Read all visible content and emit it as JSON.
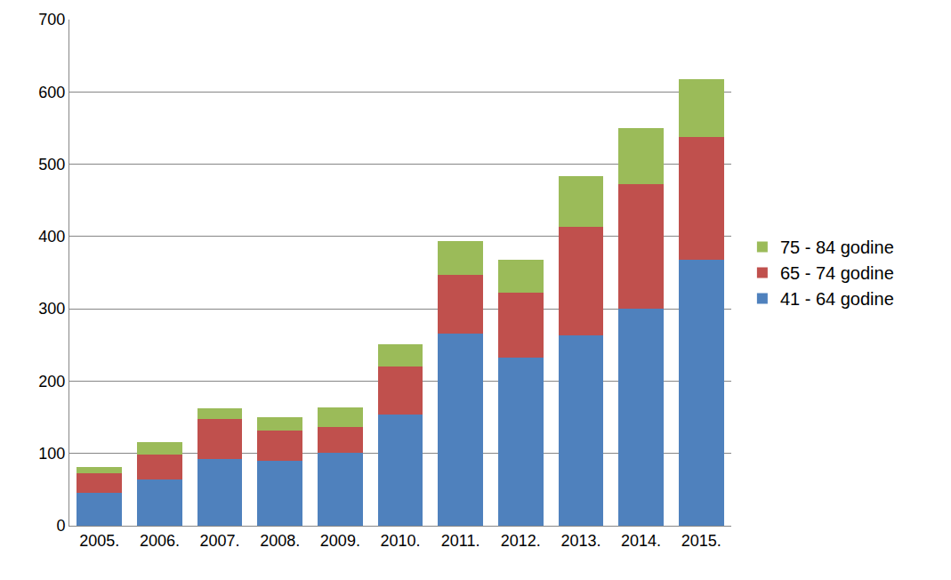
{
  "chart_data": {
    "type": "bar",
    "stacked": true,
    "grid": true,
    "legend": "right",
    "categories": [
      "2005.",
      "2006.",
      "2007.",
      "2008.",
      "2009.",
      "2010.",
      "2011.",
      "2012.",
      "2013.",
      "2014.",
      "2015."
    ],
    "series": [
      {
        "name": "41 - 64 godine",
        "color": "#4f81bd",
        "values": [
          46,
          64,
          92,
          90,
          101,
          154,
          266,
          232,
          263,
          300,
          368
        ]
      },
      {
        "name": "65 - 74 godine",
        "color": "#c0504d",
        "values": [
          27,
          34,
          56,
          42,
          36,
          66,
          81,
          90,
          150,
          172,
          170
        ]
      },
      {
        "name": "75 - 84 godine",
        "color": "#9bbb59",
        "values": [
          8,
          18,
          14,
          18,
          27,
          31,
          47,
          46,
          70,
          78,
          80
        ]
      }
    ],
    "ylim": [
      0,
      700
    ],
    "yticks": [
      0,
      100,
      200,
      300,
      400,
      500,
      600,
      700
    ]
  }
}
